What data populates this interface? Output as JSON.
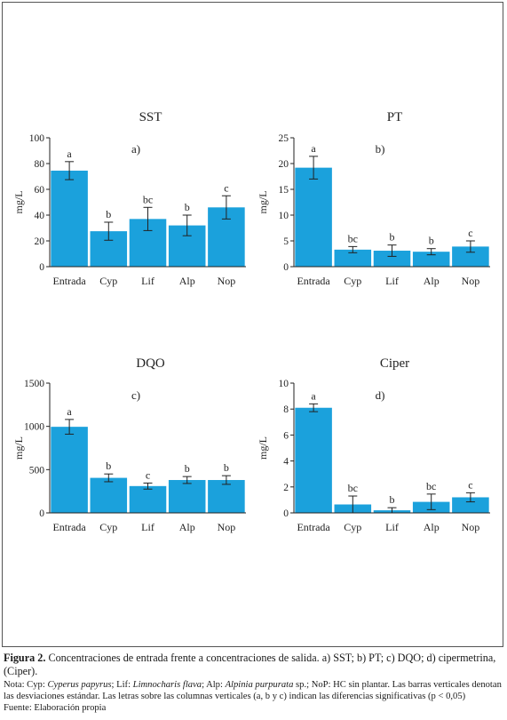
{
  "colors": {
    "bar": "#1ba1dc",
    "axis": "#222222",
    "frame": "#555555"
  },
  "chart_data": [
    {
      "type": "bar",
      "title": "SST",
      "panel_label": "a)",
      "ylabel": "mg/L",
      "xlabel": "",
      "ylim": [
        0,
        100
      ],
      "yticks": [
        0,
        20,
        40,
        60,
        80,
        100
      ],
      "categories": [
        "Entrada",
        "Cyp",
        "Lif",
        "Alp",
        "Nop"
      ],
      "values": [
        74.5,
        27.5,
        37,
        32,
        46
      ],
      "errors": [
        7,
        7,
        9,
        8,
        9
      ],
      "letters": [
        "a",
        "b",
        "bc",
        "b",
        "c"
      ],
      "grid": false,
      "legend": "none"
    },
    {
      "type": "bar",
      "title": "PT",
      "panel_label": "b)",
      "ylabel": "mg/L",
      "xlabel": "",
      "ylim": [
        0,
        25
      ],
      "yticks": [
        0,
        5,
        10,
        15,
        20,
        25
      ],
      "categories": [
        "Entrada",
        "Cyp",
        "Lif",
        "Alp",
        "Nop"
      ],
      "values": [
        19.2,
        3.3,
        3.1,
        2.9,
        3.9
      ],
      "errors": [
        2.2,
        0.6,
        1.1,
        0.6,
        1.1
      ],
      "letters": [
        "a",
        "bc",
        "b",
        "b",
        "c"
      ],
      "grid": false,
      "legend": "none"
    },
    {
      "type": "bar",
      "title": "DQO",
      "panel_label": "c)",
      "ylabel": "mg/L",
      "xlabel": "",
      "ylim": [
        0,
        1500
      ],
      "yticks": [
        0,
        500,
        1000,
        1500
      ],
      "categories": [
        "Entrada",
        "Cyp",
        "Lif",
        "Alp",
        "Nop"
      ],
      "values": [
        995,
        405,
        310,
        380,
        380
      ],
      "errors": [
        85,
        45,
        35,
        40,
        50
      ],
      "letters": [
        "a",
        "b",
        "c",
        "b",
        "b"
      ],
      "grid": false,
      "legend": "none"
    },
    {
      "type": "bar",
      "title": "Ciper",
      "panel_label": "d)",
      "ylabel": "mg/L",
      "xlabel": "",
      "ylim": [
        0,
        10
      ],
      "yticks": [
        0,
        2,
        4,
        6,
        8,
        10
      ],
      "categories": [
        "Entrada",
        "Cyp",
        "Lif",
        "Alp",
        "Nop"
      ],
      "values": [
        8.1,
        0.65,
        0.2,
        0.85,
        1.2
      ],
      "errors": [
        0.3,
        0.65,
        0.2,
        0.6,
        0.35
      ],
      "letters": [
        "a",
        "bc",
        "b",
        "bc",
        "c"
      ],
      "grid": false,
      "legend": "none"
    }
  ],
  "caption": {
    "figure_label": "Figura 2.",
    "figure_text": " Concentraciones de entrada frente a concentraciones de salida. a) SST; b) PT; c) DQO; d) cipermetrina, (Ciper).",
    "note_1": "Nota: Cyp: ",
    "note_cyp": "Cyperus papyrus",
    "note_2": "; Lif: ",
    "note_lif": "Limnocharis flava",
    "note_3": "; Alp: ",
    "note_alp": "Alpinia purpurata",
    "note_4": " sp.; NoP: HC sin plantar. Las barras verticales denotan las desviaciones estándar. Las letras sobre las columnas verticales (a, b y c) indican las diferencias significativas (p < 0,05)",
    "source": "Fuente: Elaboración propia"
  }
}
